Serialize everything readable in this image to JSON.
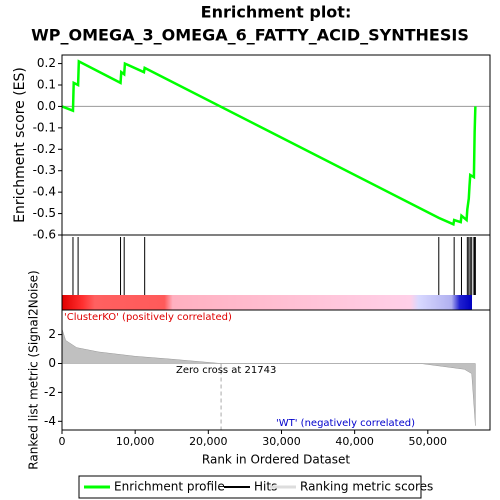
{
  "chart_data": {
    "type": "line",
    "title": [
      "Enrichment plot:",
      "WP_OMEGA_3_OMEGA_6_FATTY_ACID_SYNTHESIS"
    ],
    "x_label": "Rank in Ordered Dataset",
    "y_label": "Enrichment score (ES)",
    "y2_label": "Ranked list metric (Signal2Noise)",
    "xlim": [
      0,
      58500
    ],
    "xticks": [
      0,
      {
        "value": 10000,
        "label": "10,000"
      },
      {
        "value": 20000,
        "label": "20,000"
      },
      {
        "value": 30000,
        "label": "30,000"
      },
      {
        "value": 40000,
        "label": "40,000"
      },
      {
        "value": 50000,
        "label": "50,000"
      }
    ],
    "ylim": [
      -0.6,
      0.24
    ],
    "yticks": [
      {
        "value": 0.2,
        "label": "0.2"
      },
      {
        "value": 0.1,
        "label": "0.1"
      },
      {
        "value": 0,
        "label": "0.0"
      },
      {
        "value": -0.1,
        "label": "-0.1"
      },
      {
        "value": -0.2,
        "label": "-0.2"
      },
      {
        "value": -0.3,
        "label": "-0.3"
      },
      {
        "value": -0.4,
        "label": "-0.4"
      },
      {
        "value": -0.5,
        "label": "-0.5"
      },
      {
        "value": -0.6,
        "label": "-0.6"
      }
    ],
    "series": [
      {
        "name": "Enrichment profile",
        "color": "#00ff00",
        "x": [
          0,
          1500,
          1600,
          2200,
          2300,
          8000,
          8100,
          8500,
          8600,
          11200,
          11300,
          51500,
          53500,
          53600,
          54500,
          54600,
          55300,
          55400,
          55600,
          55700,
          55800,
          56300,
          56400,
          56500
        ],
        "values": [
          0,
          -0.02,
          0.11,
          0.1,
          0.21,
          0.11,
          0.16,
          0.15,
          0.2,
          0.16,
          0.18,
          -0.52,
          -0.55,
          -0.53,
          -0.54,
          -0.51,
          -0.53,
          -0.48,
          -0.43,
          -0.37,
          -0.32,
          -0.33,
          -0.12,
          0
        ]
      }
    ],
    "hits": {
      "name": "Hits",
      "color": "#000000",
      "x": [
        1500,
        2200,
        8000,
        8500,
        11300,
        51500,
        53600,
        54600,
        55400,
        55600,
        55800,
        56000,
        56300,
        56400,
        56500
      ]
    },
    "ranking_metric": {
      "name": "Ranking metric scores",
      "color": "#c0c0c0",
      "x": [
        0,
        500,
        2000,
        5000,
        10000,
        15000,
        21743,
        49000,
        52000,
        55000,
        56000,
        56500
      ],
      "values": [
        2.4,
        1.6,
        1.1,
        0.8,
        0.5,
        0.3,
        0,
        0,
        -0.2,
        -0.4,
        -0.7,
        -4.3
      ],
      "ylim": [
        -4.6,
        3.7
      ],
      "yticks": [
        -4,
        -2,
        0,
        2
      ]
    },
    "zero_cross": 21743,
    "annotations": [
      "'ClusterKO' (positively correlated)",
      "Zero cross at 21743",
      "'WT' (negatively correlated)"
    ]
  }
}
